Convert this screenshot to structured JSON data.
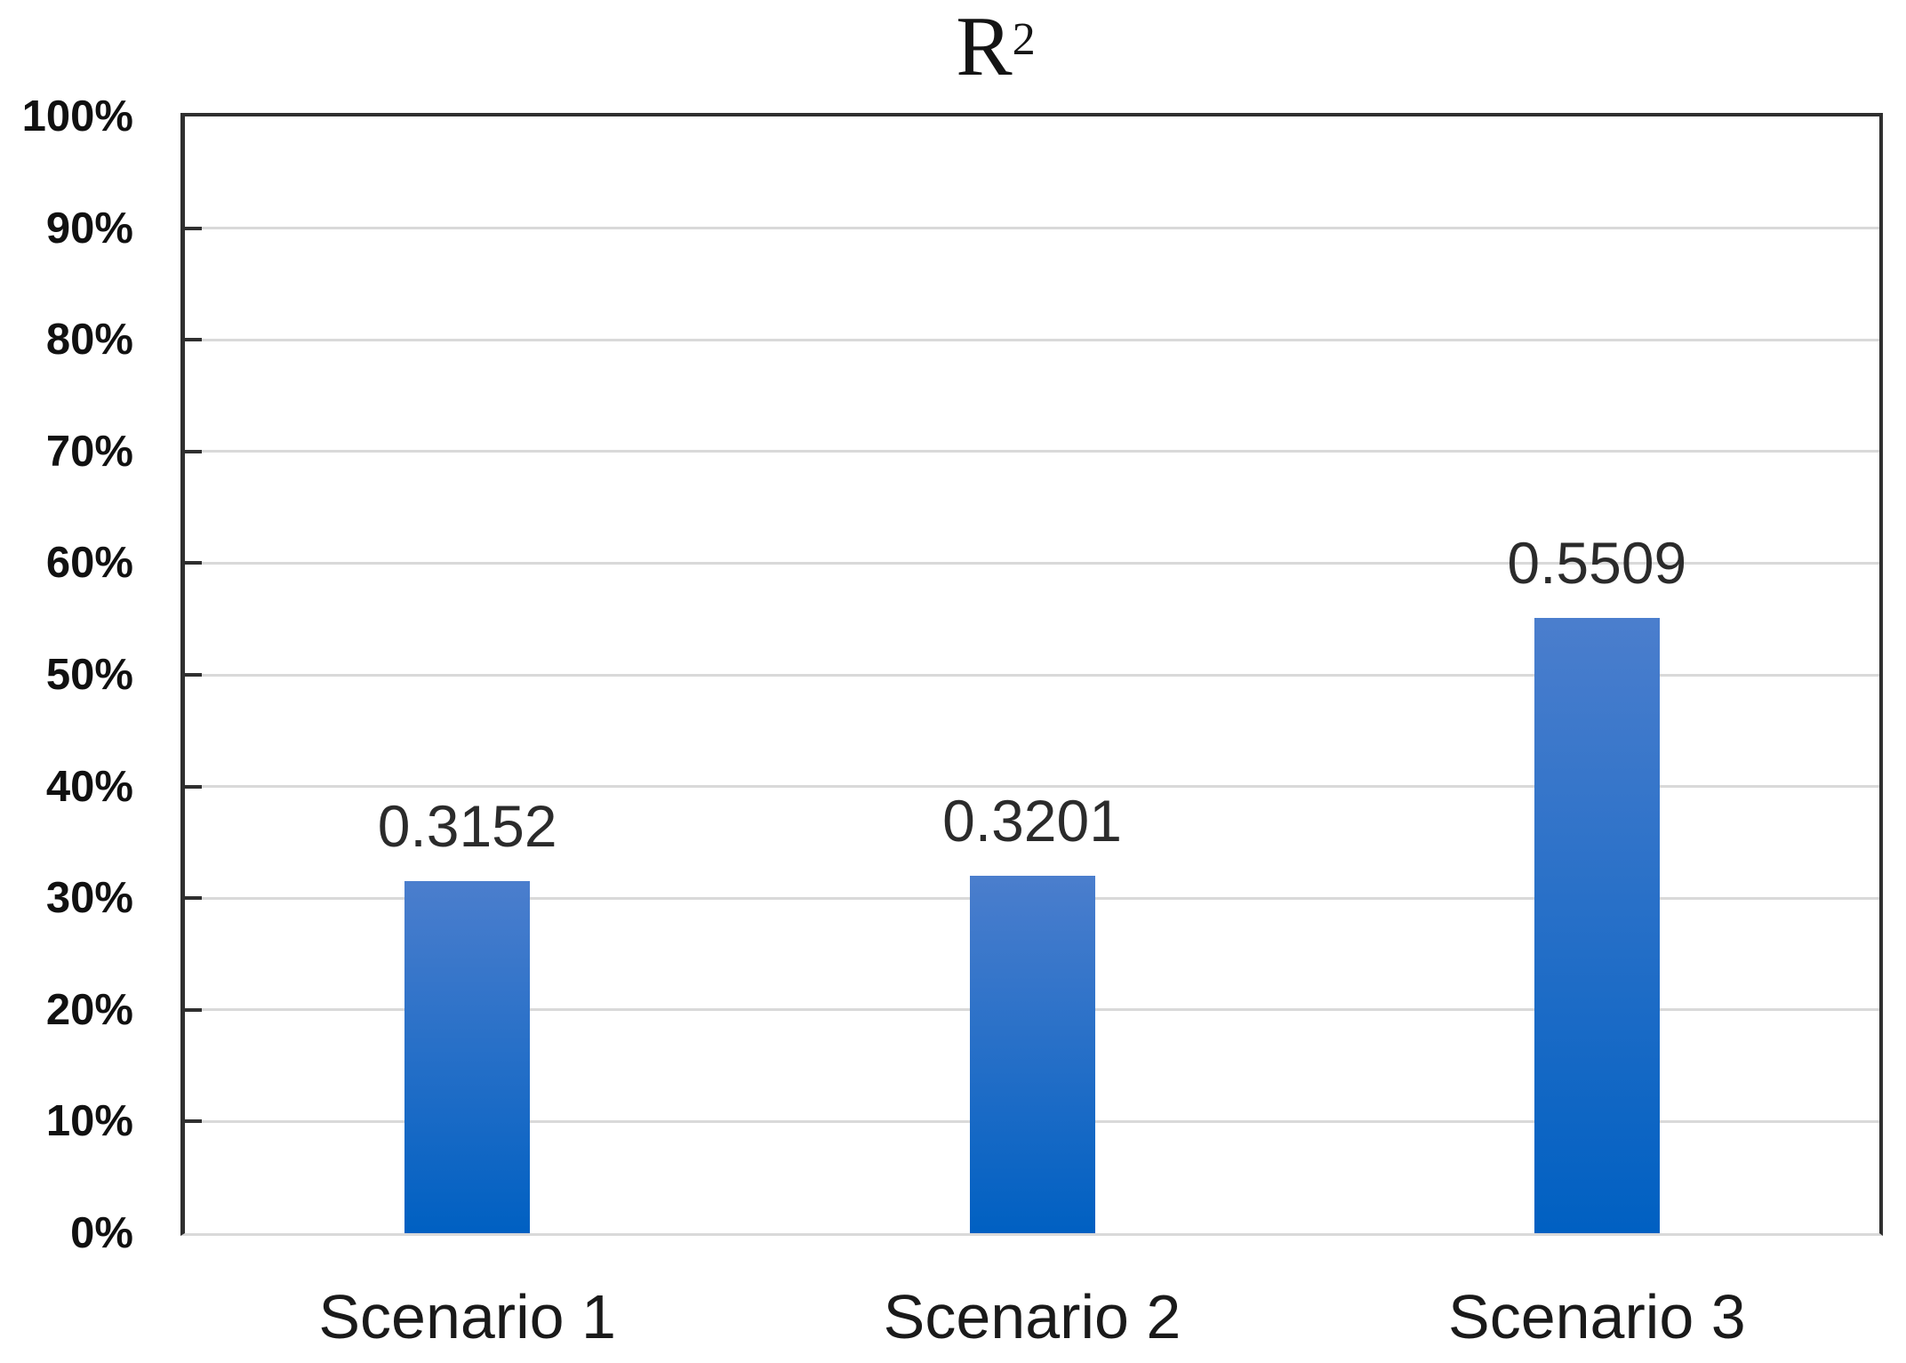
{
  "chart_data": {
    "type": "bar",
    "title": {
      "base": "R",
      "superscript": "2"
    },
    "categories": [
      "Scenario 1",
      "Scenario 2",
      "Scenario 3"
    ],
    "values": [
      0.3152,
      0.3201,
      0.5509
    ],
    "values_pct": [
      31.52,
      32.01,
      55.09
    ],
    "value_labels": [
      "0.3152",
      "0.3201",
      "0.5509"
    ],
    "y_ticks": [
      {
        "pct": 0,
        "label": "0%"
      },
      {
        "pct": 10,
        "label": "10%"
      },
      {
        "pct": 20,
        "label": "20%"
      },
      {
        "pct": 30,
        "label": "30%"
      },
      {
        "pct": 40,
        "label": "40%"
      },
      {
        "pct": 50,
        "label": "50%"
      },
      {
        "pct": 60,
        "label": "60%"
      },
      {
        "pct": 70,
        "label": "70%"
      },
      {
        "pct": 80,
        "label": "80%"
      },
      {
        "pct": 90,
        "label": "90%"
      },
      {
        "pct": 100,
        "label": "100%"
      }
    ],
    "ylim": [
      0,
      100
    ],
    "xlabel": "",
    "ylabel": "",
    "grid": true,
    "legend": false,
    "colors": {
      "bar_gradient_top": "#4B7ECD",
      "bar_gradient_bottom": "#0060C2",
      "axis_line": "#2F2F2F",
      "gridline": "#D9D9D9",
      "label_text": "#2B2B2B",
      "background": "#FFFFFF"
    }
  }
}
